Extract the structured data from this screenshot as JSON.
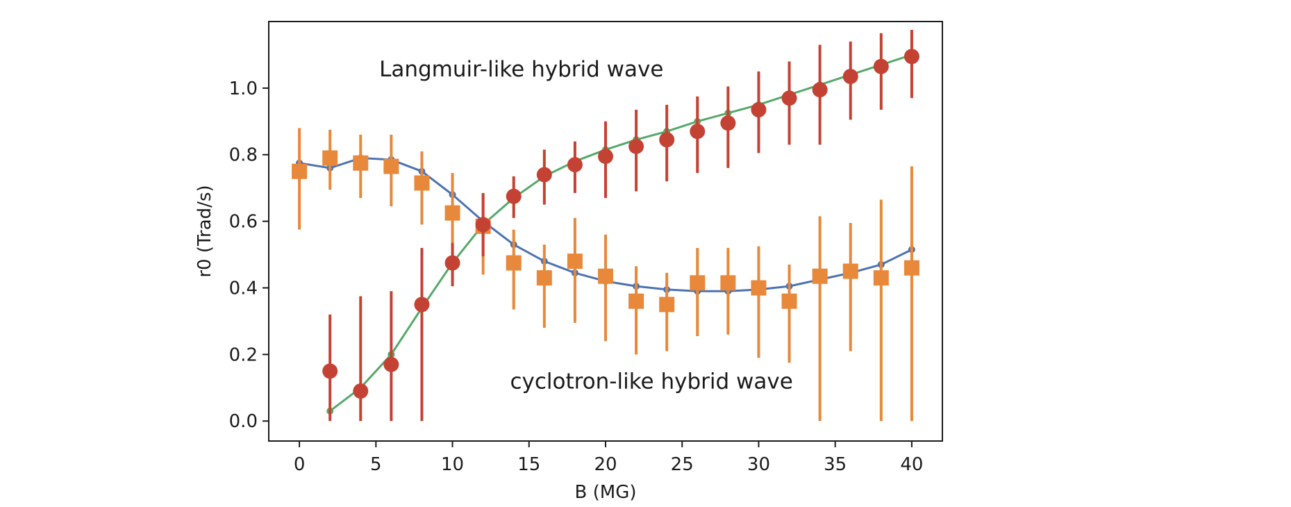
{
  "chart_data": {
    "type": "scatter",
    "xlabel": "B (MG)",
    "ylabel": "r0 (Trad/s)",
    "xlim": [
      -2,
      42
    ],
    "ylim": [
      -0.06,
      1.2
    ],
    "xticks": [
      0,
      5,
      10,
      15,
      20,
      25,
      30,
      35,
      40
    ],
    "yticks": [
      0.0,
      0.2,
      0.4,
      0.6,
      0.8,
      1.0
    ],
    "xtick_labels": [
      "0",
      "5",
      "10",
      "15",
      "20",
      "25",
      "30",
      "35",
      "40"
    ],
    "ytick_labels": [
      "0.0",
      "0.2",
      "0.4",
      "0.6",
      "0.8",
      "1.0"
    ],
    "grid": false,
    "annotations": [
      {
        "text": "Langmuir-like hybrid wave",
        "x": 14.5,
        "y": 1.035
      },
      {
        "text": "cyclotron-like hybrid wave",
        "x": 23.0,
        "y": 0.097
      }
    ],
    "series": [
      {
        "name": "cyclotron-like hybrid wave (fit)",
        "kind": "line",
        "color": "#4c72b0",
        "x": [
          0,
          2,
          4,
          6,
          8,
          10,
          12,
          14,
          16,
          18,
          20,
          22,
          24,
          26,
          28,
          30,
          32,
          34,
          36,
          38,
          40
        ],
        "y": [
          0.775,
          0.76,
          0.79,
          0.785,
          0.75,
          0.68,
          0.6,
          0.53,
          0.48,
          0.445,
          0.42,
          0.405,
          0.395,
          0.39,
          0.39,
          0.395,
          0.405,
          0.425,
          0.445,
          0.47,
          0.515
        ]
      },
      {
        "name": "Langmuir-like hybrid wave (fit)",
        "kind": "line",
        "color": "#55a868",
        "x": [
          2,
          4,
          6,
          8,
          10,
          12,
          14,
          16,
          18,
          20,
          22,
          24,
          26,
          28,
          30,
          32,
          34,
          36,
          38,
          40
        ],
        "y": [
          0.03,
          0.1,
          0.2,
          0.34,
          0.475,
          0.59,
          0.67,
          0.735,
          0.78,
          0.815,
          0.845,
          0.87,
          0.9,
          0.925,
          0.95,
          0.98,
          1.01,
          1.04,
          1.07,
          1.1
        ]
      },
      {
        "name": "cyclotron-like hybrid wave (data)",
        "kind": "errorbar",
        "marker": "square",
        "color": "#e8883a",
        "x": [
          0,
          2,
          4,
          6,
          8,
          10,
          12,
          14,
          16,
          18,
          20,
          22,
          24,
          26,
          28,
          30,
          32,
          34,
          36,
          38,
          40
        ],
        "y": [
          0.75,
          0.79,
          0.775,
          0.765,
          0.715,
          0.625,
          0.585,
          0.475,
          0.43,
          0.48,
          0.435,
          0.36,
          0.35,
          0.415,
          0.415,
          0.4,
          0.36,
          0.435,
          0.45,
          0.43,
          0.46
        ],
        "yerr_low": [
          0.575,
          0.695,
          0.67,
          0.645,
          0.59,
          0.5,
          0.44,
          0.335,
          0.28,
          0.295,
          0.24,
          0.2,
          0.21,
          0.255,
          0.26,
          0.19,
          0.175,
          0.0,
          0.21,
          0.0,
          0.0
        ],
        "yerr_high": [
          0.88,
          0.875,
          0.86,
          0.86,
          0.81,
          0.745,
          0.68,
          0.575,
          0.53,
          0.61,
          0.56,
          0.465,
          0.445,
          0.52,
          0.52,
          0.525,
          0.47,
          0.615,
          0.595,
          0.665,
          0.765
        ]
      },
      {
        "name": "Langmuir-like hybrid wave (data)",
        "kind": "errorbar",
        "marker": "circle",
        "color": "#c44233",
        "x": [
          2,
          4,
          6,
          8,
          10,
          12,
          14,
          16,
          18,
          20,
          22,
          24,
          26,
          28,
          30,
          32,
          34,
          36,
          38,
          40
        ],
        "y": [
          0.15,
          0.09,
          0.17,
          0.35,
          0.475,
          0.59,
          0.675,
          0.74,
          0.77,
          0.795,
          0.825,
          0.845,
          0.87,
          0.895,
          0.935,
          0.97,
          0.995,
          1.035,
          1.065,
          1.095
        ],
        "yerr_low": [
          0.0,
          0.0,
          0.0,
          0.0,
          0.405,
          0.495,
          0.61,
          0.65,
          0.685,
          0.67,
          0.69,
          0.72,
          0.745,
          0.76,
          0.805,
          0.83,
          0.83,
          0.905,
          0.935,
          0.97
        ],
        "yerr_high": [
          0.32,
          0.375,
          0.39,
          0.52,
          0.535,
          0.685,
          0.735,
          0.815,
          0.84,
          0.9,
          0.935,
          0.95,
          0.975,
          1.005,
          1.05,
          1.08,
          1.13,
          1.14,
          1.165,
          1.175
        ]
      }
    ]
  }
}
